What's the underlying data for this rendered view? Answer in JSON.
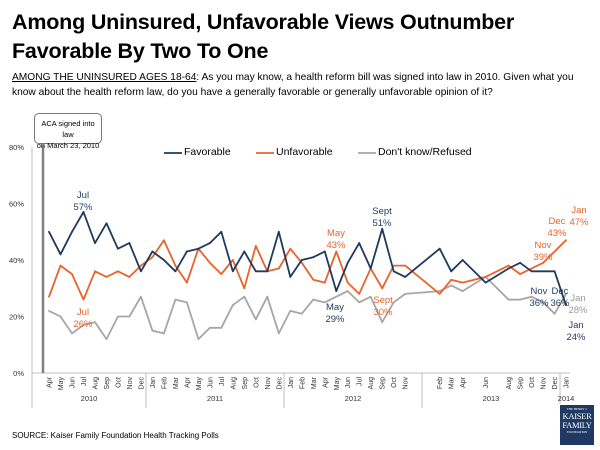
{
  "header": {
    "title": "Among Uninsured, Unfavorable Views Outnumber Favorable By Two To One",
    "question_prefix": "AMONG THE UNINSURED AGES 18-64",
    "question_text": ": As you may know, a health reform bill was signed into law in 2010. Given what you know about the health reform law, do you have a generally favorable or generally unfavorable opinion of it?"
  },
  "callout": {
    "line1": "ACA signed into law",
    "line2": "on March 23, 2010"
  },
  "footer": {
    "source": "SOURCE: Kaiser Family Foundation Health Tracking Polls",
    "logo": [
      "THE HENRY J.",
      "KAISER",
      "FAMILY",
      "FOUNDATION"
    ]
  },
  "chart_data": {
    "type": "line",
    "ylim": [
      0,
      80
    ],
    "yticks": [
      "0%",
      "20%",
      "40%",
      "60%",
      "80%"
    ],
    "legend_placement": "top",
    "grid": false,
    "x": [
      "2010-04",
      "2010-05",
      "2010-06",
      "2010-07",
      "2010-08",
      "2010-09",
      "2010-10",
      "2010-11",
      "2010-12",
      "2011-01",
      "2011-02",
      "2011-03",
      "2011-04",
      "2011-05",
      "2011-06",
      "2011-07",
      "2011-08",
      "2011-09",
      "2011-10",
      "2011-11",
      "2011-12",
      "2012-01",
      "2012-02",
      "2012-03",
      "2012-04",
      "2012-05",
      "2012-06",
      "2012-07",
      "2012-08",
      "2012-09",
      "2012-10",
      "2012-11",
      "2013-02",
      "2013-03",
      "2013-04",
      "2013-06",
      "2013-08",
      "2013-09",
      "2013-10",
      "2013-11",
      "2013-12",
      "2014-01"
    ],
    "x_tick_labels": [
      "Apr",
      "May",
      "Jun",
      "Jul",
      "Aug",
      "Sep",
      "Oct",
      "Nov",
      "Dec",
      "Jan",
      "Feb",
      "Mar",
      "Apr",
      "May",
      "Jun",
      "Jul",
      "Aug",
      "Sep",
      "Oct",
      "Nov",
      "Dec",
      "Jan",
      "Feb",
      "Mar",
      "Apr",
      "May",
      "Jun",
      "Jul",
      "Aug",
      "Sep",
      "Oct",
      "Nov",
      "Feb",
      "Mar",
      "Apr",
      "Jun",
      "Aug",
      "Sep",
      "Oct",
      "Nov",
      "Dec",
      "Jan"
    ],
    "year_labels": [
      "2010",
      "2011",
      "2012",
      "2013",
      "2014"
    ],
    "series": [
      {
        "name": "Favorable",
        "color": "#1f3a5f",
        "values": [
          50,
          42,
          50,
          57,
          46,
          53,
          44,
          46,
          36,
          43,
          40,
          36,
          43,
          44,
          46,
          50,
          36,
          43,
          36,
          36,
          50,
          34,
          40,
          41,
          43,
          29,
          39,
          46,
          37,
          51,
          36,
          34,
          44,
          36,
          40,
          32,
          37,
          39,
          36,
          36,
          36,
          24
        ]
      },
      {
        "name": "Unfavorable",
        "color": "#e8642c",
        "values": [
          27,
          38,
          35,
          26,
          36,
          34,
          36,
          34,
          38,
          41,
          47,
          38,
          32,
          44,
          39,
          35,
          40,
          30,
          45,
          36,
          37,
          44,
          39,
          33,
          32,
          43,
          32,
          28,
          37,
          30,
          38,
          38,
          28,
          33,
          32,
          34,
          38,
          35,
          37,
          39,
          43,
          47
        ]
      },
      {
        "name": "Don't know/Refused",
        "color": "#a6a6a6",
        "values": [
          22,
          20,
          14,
          17,
          18,
          12,
          20,
          20,
          27,
          15,
          14,
          26,
          25,
          12,
          16,
          16,
          24,
          27,
          19,
          27,
          14,
          22,
          21,
          26,
          25,
          27,
          29,
          25,
          27,
          18,
          25,
          28,
          29,
          31,
          29,
          34,
          26,
          26,
          27,
          25,
          21,
          28
        ]
      }
    ],
    "annotations": [
      {
        "series": "Favorable",
        "l1": "Jul",
        "l2": "57%"
      },
      {
        "series": "Unfavorable",
        "l1": "Jul",
        "l2": "26%"
      },
      {
        "series": "Unfavorable",
        "l1": "May",
        "l2": "43%"
      },
      {
        "series": "Favorable",
        "l1": "May",
        "l2": "29%"
      },
      {
        "series": "Favorable",
        "l1": "Sept",
        "l2": "51%"
      },
      {
        "series": "Unfavorable",
        "l1": "Sept",
        "l2": "30%"
      },
      {
        "series": "Unfavorable",
        "l1": "Nov",
        "l2": "39%"
      },
      {
        "series": "Unfavorable",
        "l1": "Dec",
        "l2": "43%"
      },
      {
        "series": "Unfavorable",
        "l1": "Jan",
        "l2": "47%"
      },
      {
        "series": "Favorable",
        "l1": "Nov",
        "l2": "36%"
      },
      {
        "series": "Favorable",
        "l1": "Dec",
        "l2": "36%"
      },
      {
        "series": "Don't know/Refused",
        "l1": "Jan",
        "l2": "28%"
      },
      {
        "series": "Favorable",
        "l1": "Jan",
        "l2": "24%"
      }
    ]
  }
}
